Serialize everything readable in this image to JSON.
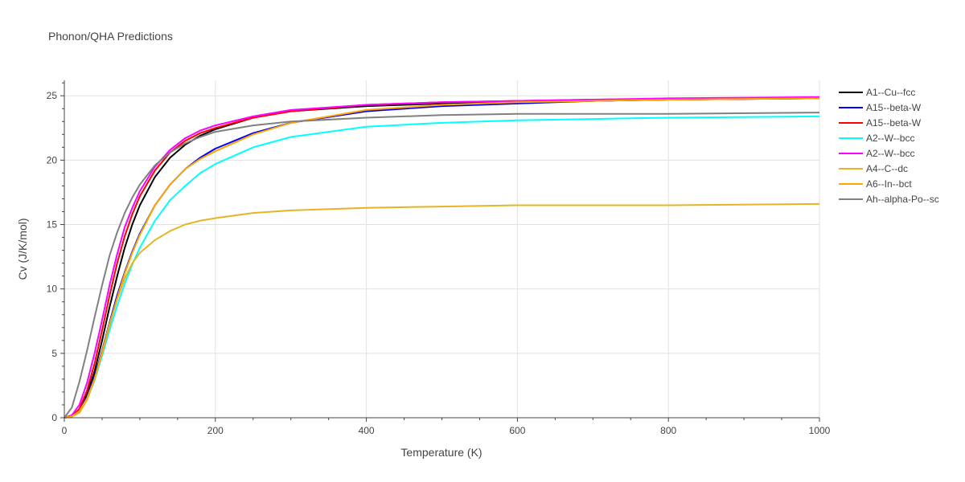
{
  "chart_data": {
    "type": "line",
    "title": "Phonon/QHA Predictions",
    "xlabel": "Temperature (K)",
    "ylabel": "Cv (J/K/mol)",
    "xlim": [
      0,
      1000
    ],
    "ylim": [
      0,
      26.2
    ],
    "xticks": [
      0,
      200,
      400,
      600,
      800,
      1000
    ],
    "yticks": [
      0,
      5,
      10,
      15,
      20,
      25
    ],
    "grid": true,
    "legend_position": "top-right",
    "series": [
      {
        "name": "A1--Cu--fcc",
        "color": "#000000",
        "x": [
          0,
          10,
          20,
          30,
          40,
          50,
          60,
          70,
          80,
          90,
          100,
          120,
          140,
          160,
          180,
          200,
          250,
          300,
          400,
          500,
          600,
          700,
          800,
          1000
        ],
        "y": [
          0,
          0.1,
          0.6,
          1.8,
          3.6,
          6.0,
          8.6,
          11.0,
          13.2,
          15.0,
          16.5,
          18.7,
          20.2,
          21.2,
          21.9,
          22.4,
          23.3,
          23.8,
          24.2,
          24.4,
          24.5,
          24.6,
          24.7,
          24.8
        ]
      },
      {
        "name": "A15--beta-W",
        "color": "#0000ff",
        "x": [
          0,
          10,
          20,
          30,
          40,
          50,
          60,
          70,
          80,
          90,
          100,
          120,
          140,
          160,
          180,
          200,
          250,
          300,
          400,
          500,
          600,
          700,
          800,
          1000
        ],
        "y": [
          0,
          0.1,
          0.6,
          1.6,
          3.2,
          5.2,
          7.4,
          9.5,
          11.3,
          12.9,
          14.3,
          16.5,
          18.1,
          19.3,
          20.2,
          20.9,
          22.1,
          22.9,
          23.8,
          24.2,
          24.4,
          24.6,
          24.7,
          24.8
        ]
      },
      {
        "name": "A15--beta-W",
        "color": "#ff0000",
        "x": [
          0,
          10,
          20,
          30,
          40,
          50,
          60,
          70,
          80,
          90,
          100,
          120,
          140,
          160,
          180,
          200,
          250,
          300,
          400,
          500,
          600,
          700,
          800,
          1000
        ],
        "y": [
          0,
          0.1,
          0.7,
          2.1,
          4.2,
          6.8,
          9.5,
          12.0,
          14.1,
          15.8,
          17.2,
          19.2,
          20.6,
          21.5,
          22.1,
          22.5,
          23.3,
          23.8,
          24.3,
          24.5,
          24.6,
          24.7,
          24.7,
          24.8
        ]
      },
      {
        "name": "A2--W--bcc",
        "color": "#00ffff",
        "x": [
          0,
          10,
          20,
          30,
          40,
          50,
          60,
          70,
          80,
          90,
          100,
          120,
          140,
          160,
          180,
          200,
          250,
          300,
          400,
          500,
          600,
          700,
          800,
          1000
        ],
        "y": [
          0,
          0.1,
          0.5,
          1.4,
          2.9,
          4.8,
          6.8,
          8.7,
          10.4,
          11.9,
          13.2,
          15.3,
          16.9,
          18.0,
          19.0,
          19.7,
          21.0,
          21.8,
          22.6,
          22.9,
          23.1,
          23.2,
          23.3,
          23.4
        ]
      },
      {
        "name": "A2--W--bcc",
        "color": "#ff00ff",
        "x": [
          0,
          10,
          20,
          30,
          40,
          50,
          60,
          70,
          80,
          90,
          100,
          120,
          140,
          160,
          180,
          200,
          250,
          300,
          400,
          500,
          600,
          700,
          800,
          1000
        ],
        "y": [
          0,
          0.2,
          1.0,
          2.7,
          5.0,
          7.6,
          10.3,
          12.7,
          14.8,
          16.3,
          17.6,
          19.5,
          20.8,
          21.7,
          22.3,
          22.7,
          23.4,
          23.9,
          24.3,
          24.5,
          24.6,
          24.7,
          24.8,
          24.9
        ]
      },
      {
        "name": "A4--C--dc",
        "color": "#e6b520",
        "x": [
          0,
          10,
          20,
          30,
          40,
          50,
          60,
          70,
          80,
          90,
          100,
          120,
          140,
          160,
          180,
          200,
          250,
          300,
          400,
          500,
          600,
          700,
          800,
          1000
        ],
        "y": [
          0,
          0.1,
          0.5,
          1.5,
          3.0,
          5.1,
          7.3,
          9.2,
          10.8,
          12.0,
          12.8,
          13.8,
          14.5,
          15.0,
          15.3,
          15.5,
          15.9,
          16.1,
          16.3,
          16.4,
          16.5,
          16.5,
          16.5,
          16.6
        ]
      },
      {
        "name": "A6--In--bct",
        "color": "#ffa500",
        "x": [
          0,
          10,
          20,
          30,
          40,
          50,
          60,
          70,
          80,
          90,
          100,
          120,
          140,
          160,
          180,
          200,
          250,
          300,
          400,
          500,
          600,
          700,
          800,
          1000
        ],
        "y": [
          0,
          0.1,
          0.4,
          1.4,
          3.0,
          5.0,
          7.2,
          9.3,
          11.2,
          12.8,
          14.2,
          16.5,
          18.1,
          19.3,
          20.1,
          20.7,
          22.0,
          22.9,
          23.9,
          24.3,
          24.5,
          24.6,
          24.7,
          24.8
        ]
      },
      {
        "name": "Ah--alpha-Po--sc",
        "color": "#808080",
        "x": [
          0,
          10,
          20,
          30,
          40,
          50,
          60,
          70,
          80,
          90,
          100,
          120,
          140,
          160,
          180,
          200,
          250,
          300,
          400,
          500,
          600,
          700,
          800,
          1000
        ],
        "y": [
          0,
          0.8,
          2.8,
          5.2,
          7.8,
          10.3,
          12.6,
          14.4,
          15.9,
          17.1,
          18.1,
          19.6,
          20.6,
          21.3,
          21.8,
          22.2,
          22.7,
          23.0,
          23.3,
          23.5,
          23.6,
          23.6,
          23.6,
          23.7
        ]
      }
    ]
  }
}
